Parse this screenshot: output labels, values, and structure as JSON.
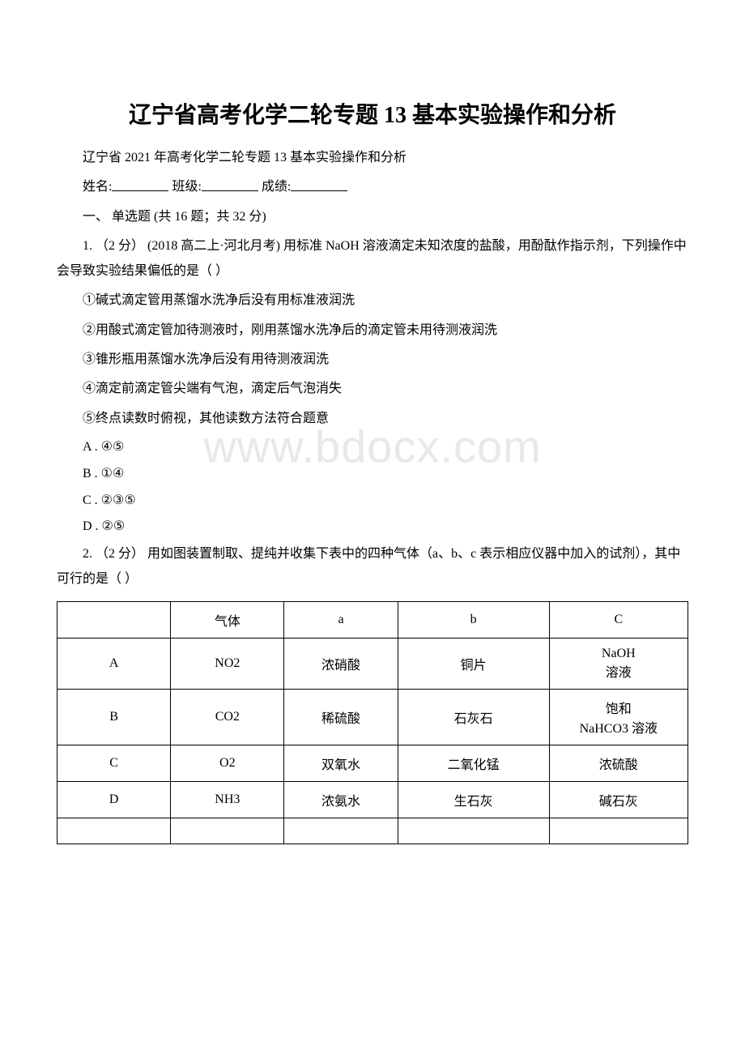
{
  "watermark": "www.bdocx.com",
  "title": "辽宁省高考化学二轮专题 13 基本实验操作和分析",
  "subtitle": "辽宁省 2021 年高考化学二轮专题 13 基本实验操作和分析",
  "form": {
    "name_label": "姓名:",
    "class_label": "班级:",
    "score_label": "成绩:"
  },
  "section_header": "一、 单选题 (共 16 题；共 32 分)",
  "q1": {
    "stem": "1. （2 分） (2018 高二上·河北月考) 用标准 NaOH 溶液滴定未知浓度的盐酸，用酚酞作指示剂，下列操作中会导致实验结果偏低的是（ ）",
    "items": [
      "①碱式滴定管用蒸馏水洗净后没有用标准液润洗",
      "②用酸式滴定管加待测液时，刚用蒸馏水洗净后的滴定管未用待测液润洗",
      "③锥形瓶用蒸馏水洗净后没有用待测液润洗",
      "④滴定前滴定管尖端有气泡，滴定后气泡消失",
      "⑤终点读数时俯视，其他读数方法符合题意"
    ],
    "options": {
      "A": "A . ④⑤",
      "B": "B . ①④",
      "C": "C . ②③⑤",
      "D": "D . ②⑤"
    }
  },
  "q2": {
    "stem": "2. （2 分） 用如图装置制取、提纯并收集下表中的四种气体（a、b、c 表示相应仪器中加入的试剂），其中可行的是（ ）",
    "table": {
      "headers": [
        "",
        "气体",
        "a",
        "b",
        "C"
      ],
      "rows": [
        [
          "A",
          "NO2",
          "浓硝酸",
          "铜片",
          "NaOH\n溶液"
        ],
        [
          "B",
          "CO2",
          "稀硫酸",
          "石灰石",
          "饱和\nNaHCO3 溶液"
        ],
        [
          "C",
          "O2",
          "双氧水",
          "二氧化锰",
          "浓硫酸"
        ],
        [
          "D",
          "NH3",
          "浓氨水",
          "生石灰",
          "碱石灰"
        ]
      ]
    }
  },
  "styles": {
    "background_color": "#ffffff",
    "text_color": "#000000",
    "watermark_color": "#e8e8e8",
    "title_fontsize": 28,
    "body_fontsize": 16,
    "watermark_fontsize": 56,
    "underline_width": 70
  }
}
